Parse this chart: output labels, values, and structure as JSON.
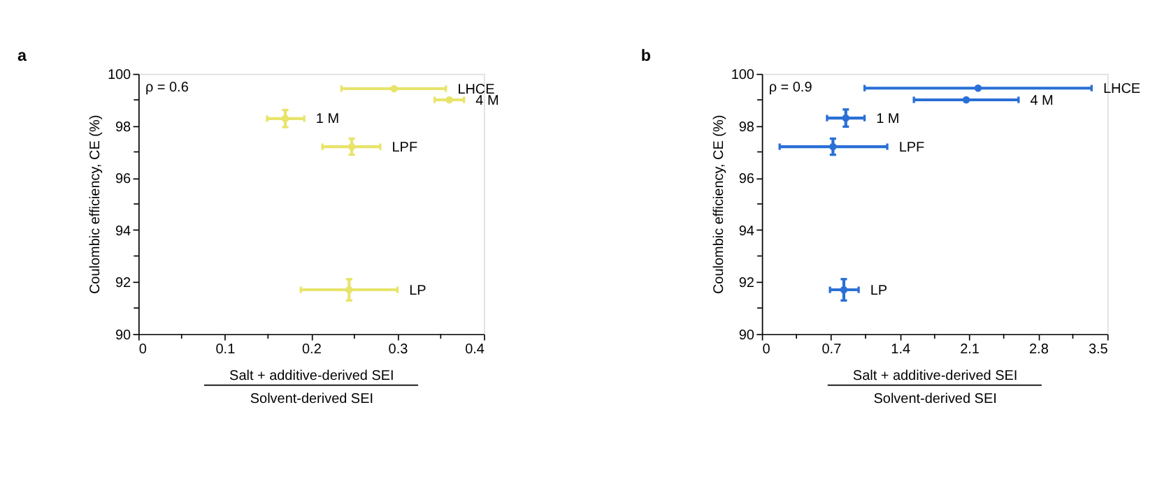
{
  "chart_data": [
    {
      "type": "scatter",
      "title": "a",
      "xlabel": "Salt + additive-derived SEI\nSolvent-derived SEI",
      "ylabel": "Coulombic efficiency, CE (%)",
      "x": [
        0.296,
        0.36,
        0.17,
        0.247,
        0.244
      ],
      "series": [
        {
          "color": "#e8e46a",
          "values": [
            99.43,
            99.0,
            98.28,
            97.2,
            91.7
          ],
          "xerrors": [
            [
              0.235,
              0.356
            ],
            [
              0.343,
              0.377
            ],
            [
              0.149,
              0.192
            ],
            [
              0.213,
              0.28
            ],
            [
              0.188,
              0.3
            ]
          ],
          "errors": [
            null,
            null,
            0.33,
            0.31,
            0.41
          ]
        }
      ],
      "xlim": [
        0,
        0.4
      ],
      "ylim": [
        90,
        100
      ],
      "xticks": [
        0,
        {
          "value": 0.05,
          "label": null
        },
        0.1,
        {
          "value": 0.15,
          "label": null
        },
        0.2,
        {
          "value": 0.25,
          "label": null
        },
        0.3,
        {
          "value": 0.35,
          "label": null
        },
        0.4
      ],
      "yticks": [
        90,
        {
          "value": 91,
          "label": null
        },
        92,
        {
          "value": 93,
          "label": null
        },
        94,
        {
          "value": 95,
          "label": null
        },
        96,
        {
          "value": 97,
          "label": null
        },
        98,
        {
          "value": 99,
          "label": null
        },
        100
      ],
      "annotations": [
        "ρ = 0.6",
        "LHCE",
        "4 M",
        "1 M",
        "LPF",
        "LP"
      ],
      "grid": false,
      "marker": "circle"
    },
    {
      "type": "scatter",
      "title": "b",
      "xlabel": "Salt + additive-derived SEI\nSolvent-derived SEI",
      "ylabel": "Coulombic efficiency, CE (%)",
      "x": [
        2.19,
        2.07,
        0.85,
        0.72,
        0.83
      ],
      "series": [
        {
          "color": "#2a6fd6",
          "values": [
            99.45,
            99.0,
            98.3,
            97.2,
            91.7
          ],
          "xerrors": [
            [
              1.04,
              3.34
            ],
            [
              1.54,
              2.6
            ],
            [
              0.66,
              1.04
            ],
            [
              0.18,
              1.27
            ],
            [
              0.69,
              0.98
            ]
          ],
          "errors": [
            null,
            null,
            0.33,
            0.31,
            0.41
          ]
        }
      ],
      "xlim": [
        0,
        3.5
      ],
      "ylim": [
        90,
        100
      ],
      "xticks": [
        0,
        {
          "value": 0.35,
          "label": null
        },
        0.7,
        {
          "value": 1.05,
          "label": null
        },
        1.4,
        {
          "value": 1.75,
          "label": null
        },
        2.1,
        {
          "value": 2.45,
          "label": null
        },
        2.8,
        {
          "value": 3.15,
          "label": null
        },
        3.5
      ],
      "yticks": [
        90,
        {
          "value": 91,
          "label": null
        },
        92,
        {
          "value": 93,
          "label": null
        },
        94,
        {
          "value": 95,
          "label": null
        },
        96,
        {
          "value": 97,
          "label": null
        },
        98,
        {
          "value": 99,
          "label": null
        },
        100
      ],
      "annotations": [
        "ρ = 0.9",
        "LHCE",
        "4 M",
        "1 M",
        "LPF",
        "LP"
      ],
      "grid": false,
      "marker": "circle"
    }
  ]
}
